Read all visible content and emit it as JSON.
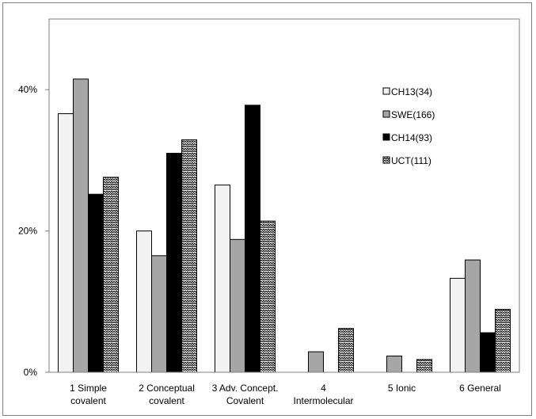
{
  "chart_data": {
    "type": "bar",
    "categories": [
      [
        "1 Simple",
        "covalent"
      ],
      [
        "2 Conceptual",
        "covalent"
      ],
      [
        "3 Adv. Concept.",
        "Covalent"
      ],
      [
        "4",
        "Intermolecular"
      ],
      [
        "5 Ionic"
      ],
      [
        "6 General"
      ]
    ],
    "series": [
      {
        "name": "CH13(34)",
        "values": [
          36.6,
          20.0,
          26.5,
          0,
          0,
          13.3
        ],
        "color": "#f2f2f2",
        "pattern": "light"
      },
      {
        "name": "SWE(166)",
        "values": [
          41.5,
          16.5,
          18.8,
          2.9,
          2.3,
          15.9
        ],
        "color": "#a6a6a6",
        "pattern": "gray"
      },
      {
        "name": "CH14(93)",
        "values": [
          25.2,
          31.0,
          37.8,
          0,
          0,
          5.6
        ],
        "color": "#000000",
        "pattern": "black"
      },
      {
        "name": "UCT(111)",
        "values": [
          27.6,
          32.9,
          21.4,
          6.2,
          1.8,
          8.9
        ],
        "color": "#ffffff",
        "pattern": "zigzag"
      }
    ],
    "yticks": [
      "0%",
      "20%",
      "40%"
    ],
    "ytick_values": [
      0,
      20,
      40
    ],
    "ylim": [
      0,
      50
    ],
    "legend_position": "top-right",
    "grid": false
  }
}
